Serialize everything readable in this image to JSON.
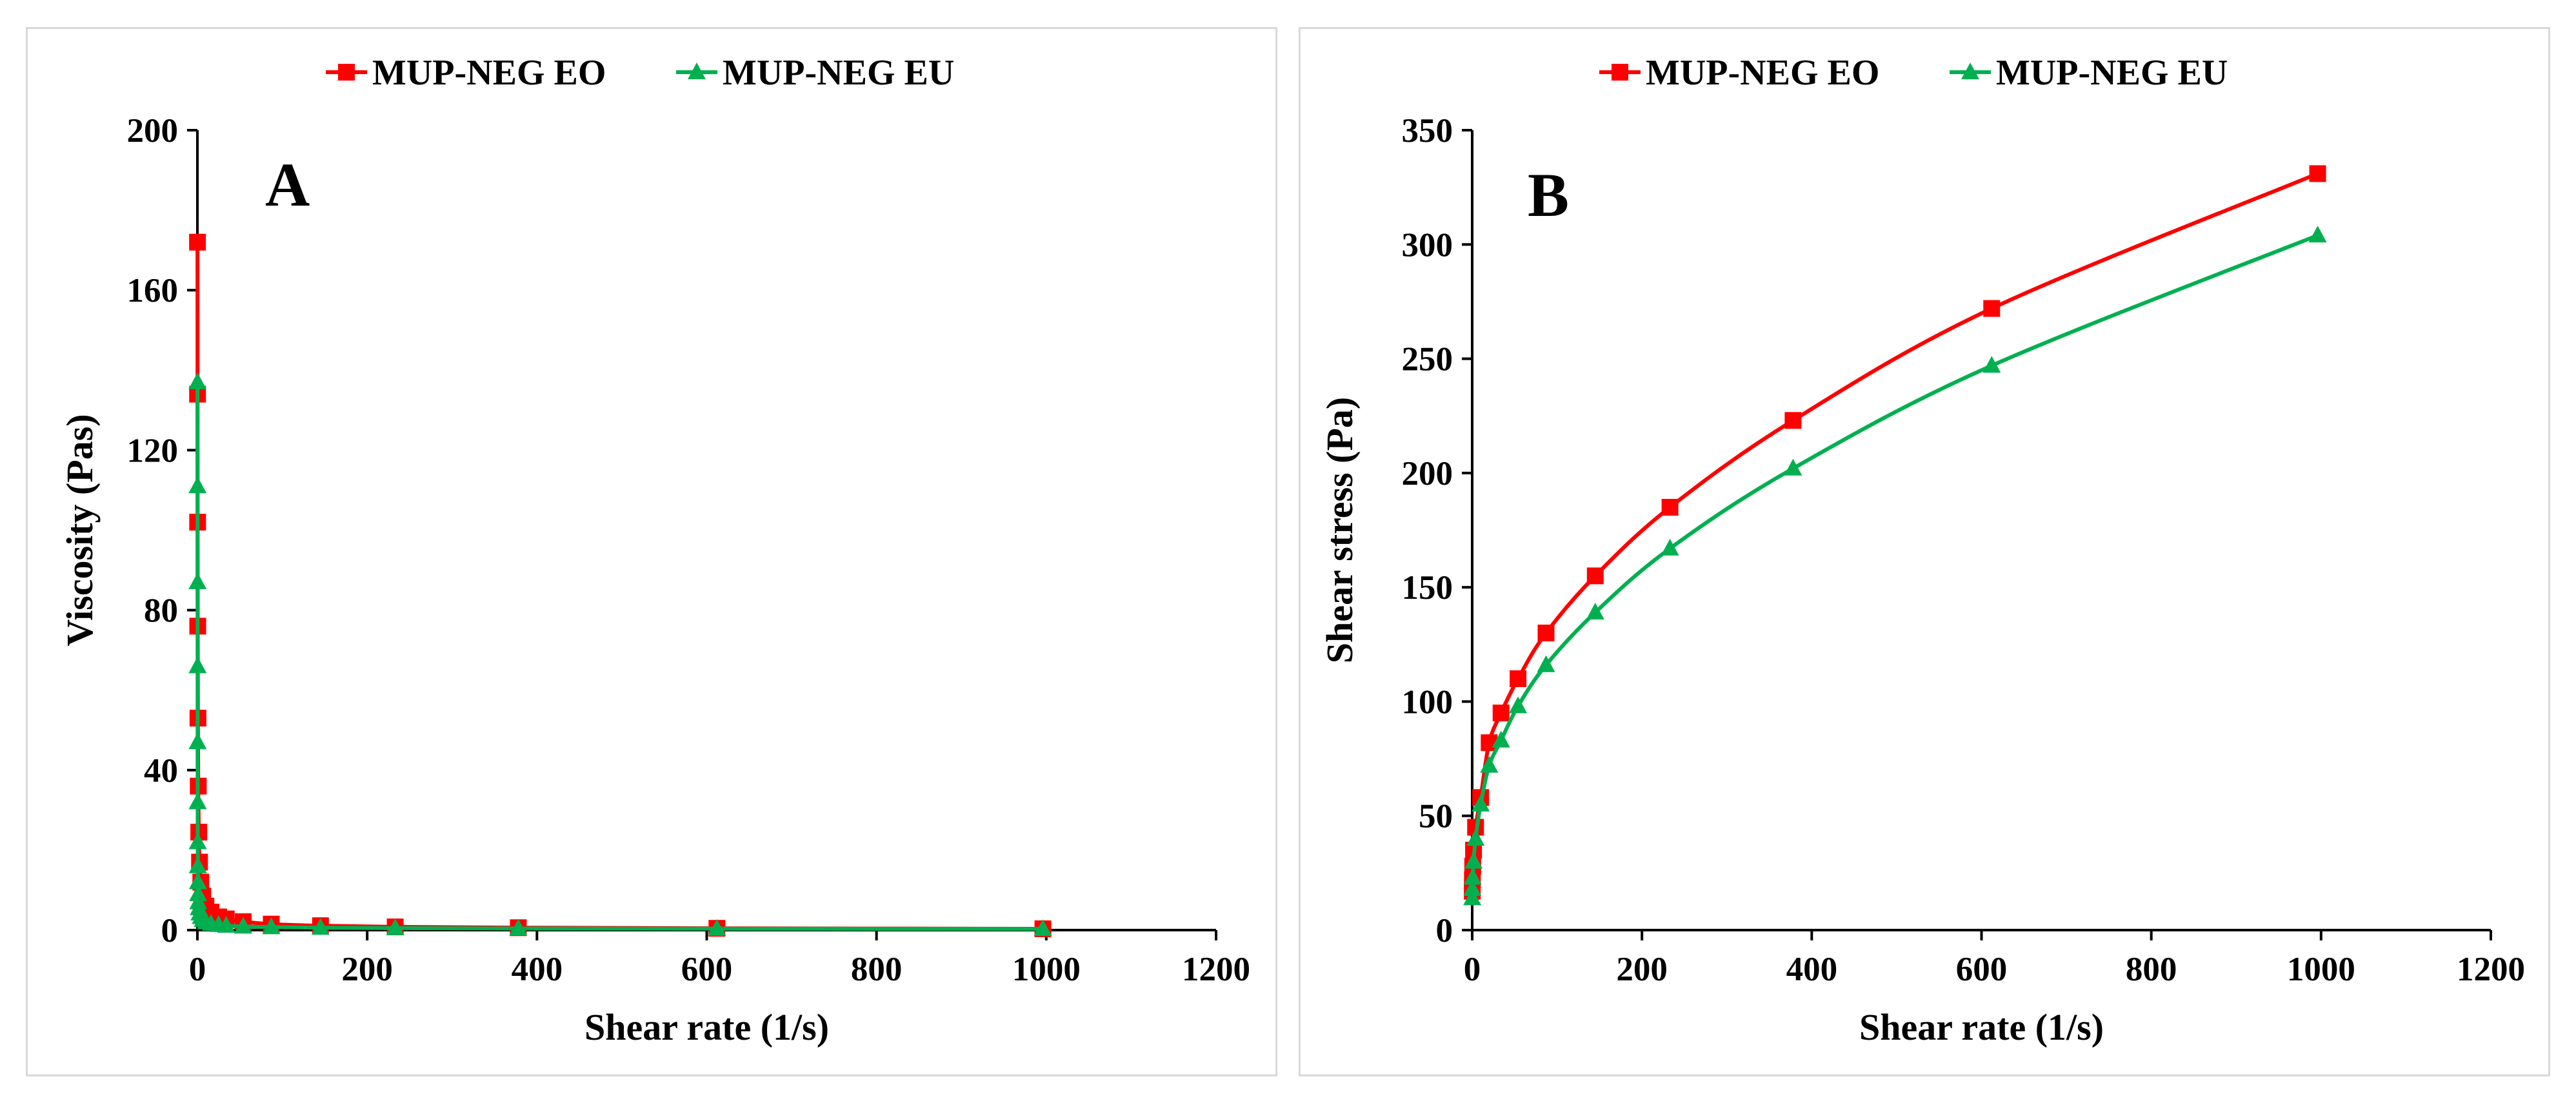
{
  "chart_data": [
    {
      "type": "scatter",
      "panel_label": "A",
      "title": "",
      "xlabel": "Shear rate (1/s)",
      "ylabel": "Viscosity (Pas)",
      "xlim": [
        0,
        1200
      ],
      "ylim": [
        0,
        200
      ],
      "xticks": [
        0,
        200,
        400,
        600,
        800,
        1000,
        1200
      ],
      "yticks": [
        0,
        40,
        80,
        120,
        160,
        200
      ],
      "legend_position": "top-center",
      "series": [
        {
          "name": "MUP-NEG EO",
          "color": "#ff0000",
          "marker": "square",
          "x": [
            0.1,
            0.16,
            0.25,
            0.4,
            0.63,
            1.0,
            1.6,
            2.5,
            4.0,
            6.3,
            10,
            16,
            25,
            34,
            54,
            87,
            145,
            233,
            378,
            612,
            996
          ],
          "y": [
            172,
            134,
            102,
            76,
            53,
            36,
            24.5,
            17,
            12,
            8.5,
            6,
            4.5,
            3.3,
            2.8,
            2.1,
            1.5,
            1.1,
            0.8,
            0.6,
            0.45,
            0.33
          ]
        },
        {
          "name": "MUP-NEG EU",
          "color": "#00b050",
          "marker": "triangle",
          "x": [
            0.1,
            0.13,
            0.16,
            0.2,
            0.25,
            0.32,
            0.4,
            0.5,
            0.63,
            0.8,
            1.0,
            1.6,
            2.5,
            4.0,
            6.3,
            10,
            16,
            25,
            34,
            54,
            87,
            145,
            233,
            378,
            612,
            996
          ],
          "y": [
            137,
            111,
            87,
            66,
            47,
            32,
            22,
            16,
            12,
            9,
            7,
            5.5,
            4.2,
            3.3,
            2.6,
            2.0,
            1.6,
            1.3,
            1.1,
            0.9,
            0.75,
            0.6,
            0.5,
            0.4,
            0.35,
            0.3
          ]
        }
      ]
    },
    {
      "type": "line",
      "panel_label": "B",
      "title": "",
      "xlabel": "Shear rate (1/s)",
      "ylabel": "Shear stress (Pa)",
      "xlim": [
        0,
        1200
      ],
      "ylim": [
        0,
        350
      ],
      "xticks": [
        0,
        200,
        400,
        600,
        800,
        1000,
        1200
      ],
      "yticks": [
        0,
        50,
        100,
        150,
        200,
        250,
        300,
        350
      ],
      "legend_position": "top-center",
      "series": [
        {
          "name": "MUP-NEG EO",
          "color": "#ff0000",
          "marker": "square",
          "x": [
            0.1,
            0.25,
            0.63,
            1.6,
            4.0,
            10,
            20,
            34,
            54,
            87,
            145,
            233,
            378,
            612,
            996
          ],
          "y": [
            17,
            22,
            28,
            35,
            45,
            58,
            82,
            95,
            110,
            130,
            155,
            185,
            223,
            272,
            331
          ]
        },
        {
          "name": "MUP-NEG EU",
          "color": "#00b050",
          "marker": "triangle",
          "x": [
            0.1,
            0.25,
            0.63,
            1.6,
            4.0,
            10,
            20,
            34,
            54,
            87,
            145,
            233,
            378,
            612,
            996
          ],
          "y": [
            14,
            18,
            23,
            30,
            40,
            55,
            72,
            83,
            98,
            116,
            139,
            167,
            202,
            247,
            304
          ]
        }
      ]
    }
  ]
}
